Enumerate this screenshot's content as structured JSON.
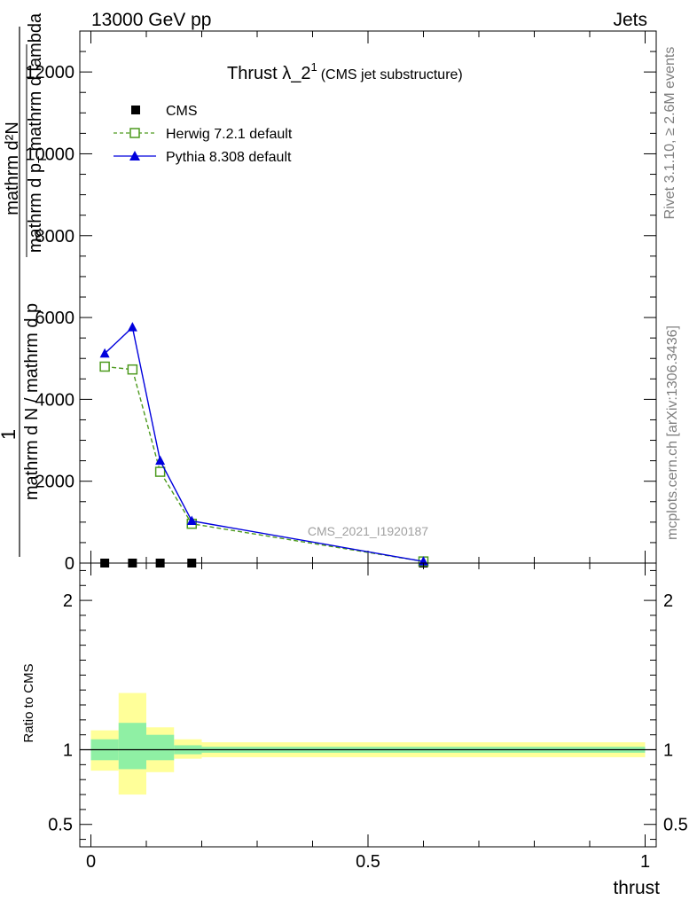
{
  "header": {
    "left": "13000 GeV pp",
    "right": "Jets"
  },
  "side_text": {
    "rivet": "Rivet 3.1.10, ≥ 2.6M events",
    "mcplots": "mcplots.cern.ch [arXiv:1306.3436]"
  },
  "plot_title": {
    "main": "Thrust λ_2",
    "sup": "1",
    "sub": "(CMS jet substructure)"
  },
  "watermark": "CMS_2021_I1920187",
  "y_axis_label": {
    "one": "1",
    "numerator": "mathrm d²N",
    "denominator": "mathrm d N / mathrm d p",
    "over_numerator": "mathrm d p",
    "over_numerator_sub": "T",
    "over_numerator_tail": " mathrm d lambda"
  },
  "ratio_y_label": "Ratio to CMS",
  "x_axis_label": "thrust",
  "chart_data": [
    {
      "type": "line",
      "panel": "main",
      "xlim": [
        -0.02,
        1.02
      ],
      "ylim": [
        0,
        13000
      ],
      "yticks": [
        0,
        2000,
        4000,
        6000,
        8000,
        10000,
        12000
      ],
      "ytick_labels": [
        "0",
        "2000",
        "4000",
        "6000",
        "8000",
        "10000",
        "12000"
      ],
      "series": [
        {
          "name": "CMS",
          "style": "square-marker",
          "color": "#000000",
          "x": [
            0.025,
            0.075,
            0.125,
            0.182,
            0.6
          ],
          "y": [
            0,
            0,
            0,
            0,
            0
          ]
        },
        {
          "name": "Herwig 7.2.1 default",
          "style": "dashed-open-square",
          "color": "#4d9a1e",
          "x": [
            0.025,
            0.075,
            0.125,
            0.182,
            0.6
          ],
          "y": [
            4800,
            4730,
            2230,
            960,
            40
          ]
        },
        {
          "name": "Pythia 8.308 default",
          "style": "solid-triangle",
          "color": "#0000dd",
          "x": [
            0.025,
            0.075,
            0.125,
            0.182,
            0.6
          ],
          "y": [
            5120,
            5760,
            2500,
            1030,
            40
          ]
        }
      ]
    },
    {
      "type": "area",
      "panel": "ratio",
      "xlim": [
        -0.02,
        1.02
      ],
      "ylim": [
        0.35,
        2.25
      ],
      "yticks": [
        0.5,
        1,
        2
      ],
      "ytick_labels": [
        "0.5",
        "1",
        "2"
      ],
      "xticks": [
        0,
        0.5,
        1
      ],
      "xtick_labels": [
        "0",
        "0.5",
        "1"
      ],
      "bins": [
        {
          "x0": 0.0,
          "x1": 0.05,
          "yellow": [
            0.86,
            1.13
          ],
          "green": [
            0.93,
            1.07
          ]
        },
        {
          "x0": 0.05,
          "x1": 0.1,
          "yellow": [
            0.7,
            1.38
          ],
          "green": [
            0.87,
            1.18
          ]
        },
        {
          "x0": 0.1,
          "x1": 0.15,
          "yellow": [
            0.85,
            1.15
          ],
          "green": [
            0.93,
            1.1
          ]
        },
        {
          "x0": 0.15,
          "x1": 0.2,
          "yellow": [
            0.94,
            1.07
          ],
          "green": [
            0.97,
            1.03
          ]
        },
        {
          "x0": 0.2,
          "x1": 1.0,
          "yellow": [
            0.95,
            1.05
          ],
          "green": [
            0.98,
            1.02
          ]
        }
      ],
      "colors": {
        "yellow": "#ffff99",
        "green": "#8ff0a4"
      }
    }
  ]
}
